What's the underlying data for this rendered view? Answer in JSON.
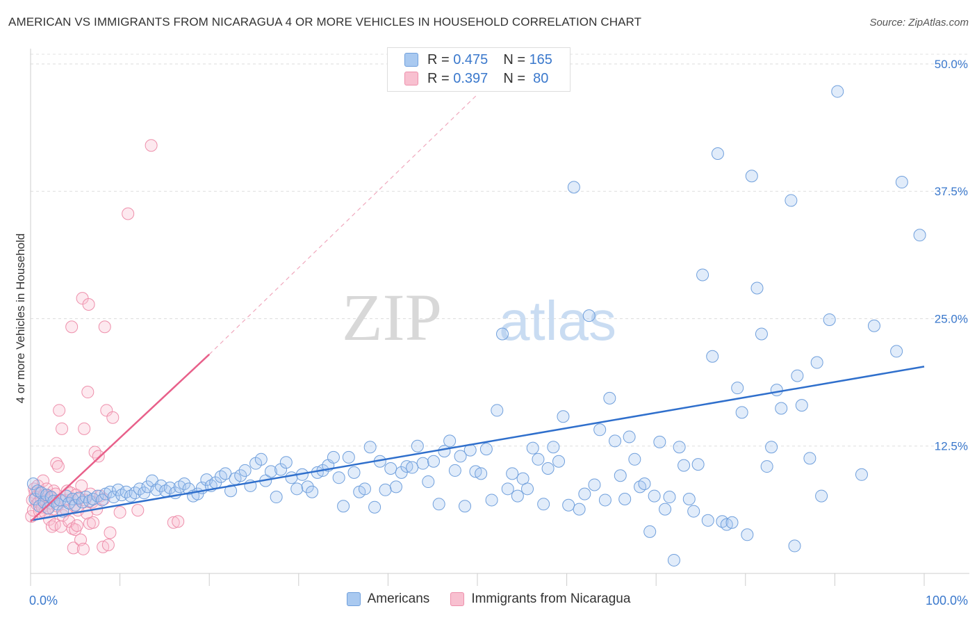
{
  "title": "AMERICAN VS IMMIGRANTS FROM NICARAGUA 4 OR MORE VEHICLES IN HOUSEHOLD CORRELATION CHART",
  "source": "Source: ZipAtlas.com",
  "watermark": {
    "zip": "ZIP",
    "atlas": "atlas"
  },
  "legend": {
    "r_label": "R =",
    "n_label": "N =",
    "americans": {
      "r": "0.475",
      "n": "165"
    },
    "nicaragua": {
      "r": "0.397",
      "n": "80"
    }
  },
  "bottom_legend": {
    "americans": "Americans",
    "nicaragua": "Immigrants from Nicaragua"
  },
  "colors": {
    "americans": "#6f9fdc",
    "nicaragua": "#ee8fab",
    "americans_line": "#2f6fcc",
    "nicaragua_line": "#e8608a",
    "axis_text": "#3a78cc"
  },
  "chart_data": {
    "type": "scatter",
    "title": "AMERICAN VS IMMIGRANTS FROM NICARAGUA 4 OR MORE VEHICLES IN HOUSEHOLD CORRELATION CHART",
    "xlabel": "",
    "ylabel": "4 or more Vehicles in Household",
    "xlim": [
      0,
      100
    ],
    "ylim": [
      0,
      51.5
    ],
    "x_tick_labels": [
      "0.0%",
      "100.0%"
    ],
    "y_ticks": [
      12.5,
      25.0,
      37.5,
      50.0
    ],
    "y_tick_labels": [
      "12.5%",
      "25.0%",
      "37.5%",
      "50.0%"
    ],
    "series": [
      {
        "name": "Americans",
        "r": 0.475,
        "n": 165,
        "trend": [
          [
            0,
            5.2
          ],
          [
            100,
            20.3
          ]
        ],
        "points": [
          [
            0.3,
            8.8
          ],
          [
            0.5,
            7.3
          ],
          [
            0.8,
            8.1
          ],
          [
            1.0,
            6.6
          ],
          [
            1.2,
            7.9
          ],
          [
            1.5,
            7.0
          ],
          [
            1.8,
            7.7
          ],
          [
            2.0,
            6.4
          ],
          [
            2.3,
            7.5
          ],
          [
            2.6,
            7.1
          ],
          [
            3.0,
            6.8
          ],
          [
            3.3,
            7.2
          ],
          [
            3.6,
            6.1
          ],
          [
            4.0,
            7.6
          ],
          [
            4.3,
            6.9
          ],
          [
            4.7,
            7.3
          ],
          [
            5.0,
            6.7
          ],
          [
            5.4,
            7.4
          ],
          [
            5.8,
            7.0
          ],
          [
            6.2,
            7.5
          ],
          [
            6.6,
            7.1
          ],
          [
            7.0,
            7.3
          ],
          [
            7.5,
            7.6
          ],
          [
            8.0,
            7.2
          ],
          [
            8.4,
            7.8
          ],
          [
            8.9,
            8.0
          ],
          [
            9.3,
            7.5
          ],
          [
            9.8,
            8.2
          ],
          [
            10.2,
            7.7
          ],
          [
            10.7,
            8.0
          ],
          [
            11.2,
            7.6
          ],
          [
            11.7,
            7.9
          ],
          [
            12.2,
            8.3
          ],
          [
            12.7,
            7.9
          ],
          [
            13.1,
            8.5
          ],
          [
            13.6,
            9.1
          ],
          [
            14.1,
            8.2
          ],
          [
            14.6,
            8.6
          ],
          [
            15.1,
            8.1
          ],
          [
            15.6,
            8.4
          ],
          [
            16.2,
            7.9
          ],
          [
            16.7,
            8.5
          ],
          [
            17.2,
            8.8
          ],
          [
            17.7,
            8.3
          ],
          [
            18.2,
            7.6
          ],
          [
            18.7,
            7.8
          ],
          [
            19.2,
            8.4
          ],
          [
            19.7,
            9.2
          ],
          [
            20.2,
            8.6
          ],
          [
            20.7,
            8.9
          ],
          [
            21.3,
            9.5
          ],
          [
            21.8,
            9.8
          ],
          [
            22.4,
            8.1
          ],
          [
            22.9,
            9.3
          ],
          [
            23.5,
            9.6
          ],
          [
            24.0,
            10.1
          ],
          [
            24.6,
            8.6
          ],
          [
            25.2,
            10.8
          ],
          [
            25.8,
            11.2
          ],
          [
            26.3,
            9.1
          ],
          [
            26.9,
            10.0
          ],
          [
            27.5,
            7.5
          ],
          [
            28.0,
            10.2
          ],
          [
            28.6,
            10.9
          ],
          [
            29.2,
            9.4
          ],
          [
            29.8,
            8.3
          ],
          [
            30.4,
            9.7
          ],
          [
            31.0,
            8.5
          ],
          [
            31.5,
            8.0
          ],
          [
            32.1,
            9.9
          ],
          [
            32.7,
            10.1
          ],
          [
            33.3,
            10.6
          ],
          [
            33.9,
            11.4
          ],
          [
            34.5,
            9.4
          ],
          [
            35.0,
            6.6
          ],
          [
            35.6,
            11.4
          ],
          [
            36.2,
            9.9
          ],
          [
            36.8,
            8.0
          ],
          [
            37.4,
            8.3
          ],
          [
            38.0,
            12.4
          ],
          [
            38.5,
            6.5
          ],
          [
            39.1,
            11.0
          ],
          [
            39.7,
            8.2
          ],
          [
            40.3,
            10.3
          ],
          [
            40.9,
            8.5
          ],
          [
            41.5,
            9.9
          ],
          [
            42.1,
            10.5
          ],
          [
            42.7,
            10.4
          ],
          [
            43.3,
            12.5
          ],
          [
            43.9,
            10.8
          ],
          [
            44.5,
            9.0
          ],
          [
            45.1,
            11.0
          ],
          [
            45.7,
            6.8
          ],
          [
            46.3,
            12.0
          ],
          [
            46.9,
            13.0
          ],
          [
            47.5,
            10.1
          ],
          [
            48.1,
            11.5
          ],
          [
            48.6,
            6.6
          ],
          [
            49.2,
            12.1
          ],
          [
            49.8,
            10.0
          ],
          [
            50.4,
            9.8
          ],
          [
            51.0,
            12.2
          ],
          [
            51.6,
            7.2
          ],
          [
            52.2,
            16.0
          ],
          [
            52.8,
            23.5
          ],
          [
            53.4,
            8.3
          ],
          [
            53.9,
            9.8
          ],
          [
            54.5,
            7.6
          ],
          [
            55.1,
            9.3
          ],
          [
            55.6,
            8.3
          ],
          [
            56.2,
            12.3
          ],
          [
            56.8,
            11.2
          ],
          [
            57.4,
            6.8
          ],
          [
            57.9,
            10.3
          ],
          [
            58.5,
            12.4
          ],
          [
            59.1,
            11.0
          ],
          [
            59.6,
            15.4
          ],
          [
            60.2,
            6.7
          ],
          [
            60.8,
            37.9
          ],
          [
            61.4,
            6.3
          ],
          [
            62.0,
            7.8
          ],
          [
            62.5,
            25.3
          ],
          [
            63.1,
            8.7
          ],
          [
            63.7,
            14.1
          ],
          [
            64.3,
            7.2
          ],
          [
            64.8,
            17.2
          ],
          [
            65.4,
            13.0
          ],
          [
            66.0,
            9.6
          ],
          [
            66.5,
            7.3
          ],
          [
            67.0,
            13.4
          ],
          [
            67.6,
            11.2
          ],
          [
            68.2,
            8.5
          ],
          [
            68.7,
            8.8
          ],
          [
            69.3,
            4.1
          ],
          [
            69.8,
            7.6
          ],
          [
            70.4,
            12.9
          ],
          [
            71.0,
            6.3
          ],
          [
            71.5,
            7.5
          ],
          [
            72.0,
            1.3
          ],
          [
            72.6,
            12.4
          ],
          [
            73.1,
            10.6
          ],
          [
            73.7,
            7.3
          ],
          [
            74.2,
            6.1
          ],
          [
            74.7,
            10.7
          ],
          [
            75.2,
            29.3
          ],
          [
            75.8,
            5.2
          ],
          [
            76.3,
            21.3
          ],
          [
            76.9,
            41.2
          ],
          [
            77.4,
            5.1
          ],
          [
            77.9,
            4.8
          ],
          [
            78.5,
            5.0
          ],
          [
            79.1,
            18.2
          ],
          [
            79.6,
            15.8
          ],
          [
            80.2,
            3.8
          ],
          [
            80.7,
            39.0
          ],
          [
            81.3,
            28.0
          ],
          [
            81.8,
            23.5
          ],
          [
            82.4,
            10.5
          ],
          [
            82.9,
            12.4
          ],
          [
            83.5,
            18.0
          ],
          [
            84.0,
            16.2
          ],
          [
            85.1,
            36.6
          ],
          [
            85.5,
            2.7
          ],
          [
            85.8,
            19.4
          ],
          [
            86.3,
            16.5
          ],
          [
            87.2,
            11.3
          ],
          [
            88.0,
            20.7
          ],
          [
            88.5,
            7.6
          ],
          [
            89.4,
            24.9
          ],
          [
            90.3,
            47.3
          ],
          [
            93.0,
            9.7
          ],
          [
            94.4,
            24.3
          ],
          [
            96.9,
            21.8
          ],
          [
            97.5,
            38.4
          ],
          [
            99.5,
            33.2
          ]
        ]
      },
      {
        "name": "Immigrants from Nicaragua",
        "r": 0.397,
        "n": 80,
        "trend": [
          [
            0,
            5.1
          ],
          [
            20,
            21.5
          ]
        ],
        "trend_extension": [
          [
            20,
            21.5
          ],
          [
            50,
            47.0
          ]
        ],
        "points": [
          [
            0.1,
            5.6
          ],
          [
            0.2,
            7.2
          ],
          [
            0.3,
            6.2
          ],
          [
            0.4,
            8.3
          ],
          [
            0.5,
            7.9
          ],
          [
            0.6,
            7.5
          ],
          [
            0.7,
            6.8
          ],
          [
            0.8,
            8.6
          ],
          [
            0.9,
            7.0
          ],
          [
            1.0,
            6.1
          ],
          [
            1.1,
            8.0
          ],
          [
            1.2,
            7.3
          ],
          [
            1.3,
            6.5
          ],
          [
            1.4,
            9.1
          ],
          [
            1.5,
            7.7
          ],
          [
            1.6,
            6.0
          ],
          [
            1.7,
            7.1
          ],
          [
            1.8,
            8.3
          ],
          [
            1.9,
            6.4
          ],
          [
            2.0,
            7.6
          ],
          [
            2.1,
            5.3
          ],
          [
            2.2,
            6.9
          ],
          [
            2.3,
            7.4
          ],
          [
            2.4,
            4.6
          ],
          [
            2.5,
            6.3
          ],
          [
            2.6,
            8.1
          ],
          [
            2.7,
            4.8
          ],
          [
            2.8,
            7.8
          ],
          [
            2.9,
            10.8
          ],
          [
            3.0,
            6.6
          ],
          [
            3.1,
            10.5
          ],
          [
            3.2,
            16.0
          ],
          [
            3.4,
            4.6
          ],
          [
            3.5,
            14.2
          ],
          [
            3.6,
            5.7
          ],
          [
            3.7,
            7.1
          ],
          [
            3.9,
            7.2
          ],
          [
            4.0,
            6.2
          ],
          [
            4.1,
            8.1
          ],
          [
            4.3,
            5.1
          ],
          [
            4.5,
            7.9
          ],
          [
            4.6,
            24.2
          ],
          [
            4.7,
            4.4
          ],
          [
            4.8,
            2.5
          ],
          [
            4.9,
            6.6
          ],
          [
            5.0,
            4.3
          ],
          [
            5.1,
            7.7
          ],
          [
            5.2,
            4.7
          ],
          [
            5.3,
            6.2
          ],
          [
            5.4,
            7.3
          ],
          [
            5.6,
            3.3
          ],
          [
            5.7,
            8.6
          ],
          [
            5.8,
            27.0
          ],
          [
            5.9,
            2.4
          ],
          [
            6.0,
            14.2
          ],
          [
            6.1,
            7.2
          ],
          [
            6.3,
            5.9
          ],
          [
            6.4,
            17.8
          ],
          [
            6.5,
            26.4
          ],
          [
            6.6,
            4.9
          ],
          [
            6.7,
            7.8
          ],
          [
            6.9,
            7.0
          ],
          [
            7.0,
            5.0
          ],
          [
            7.2,
            11.9
          ],
          [
            7.4,
            6.3
          ],
          [
            7.6,
            11.5
          ],
          [
            7.8,
            7.6
          ],
          [
            8.1,
            2.6
          ],
          [
            8.2,
            7.3
          ],
          [
            8.3,
            24.2
          ],
          [
            8.5,
            16.0
          ],
          [
            8.7,
            2.8
          ],
          [
            8.9,
            4.0
          ],
          [
            9.2,
            15.3
          ],
          [
            10.0,
            6.0
          ],
          [
            10.9,
            35.3
          ],
          [
            12.0,
            6.2
          ],
          [
            13.5,
            42.0
          ],
          [
            16.0,
            5.0
          ],
          [
            16.5,
            5.1
          ]
        ]
      }
    ]
  }
}
